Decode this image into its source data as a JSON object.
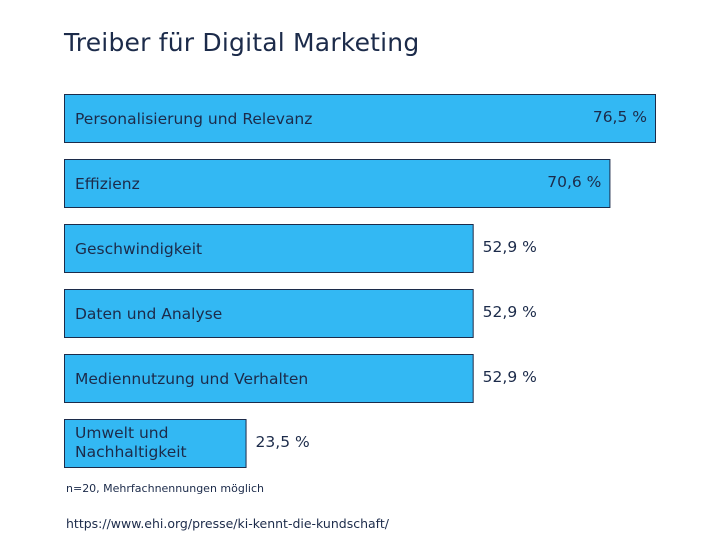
{
  "title": "Treiber für Digital Marketing",
  "note": "n=20, Mehrfachnennungen möglich",
  "source": "https://www.ehi.org/presse/ki-kennt-die-kundschaft/",
  "colors": {
    "bar": "#33b8f3",
    "bar_border": "#1c2b4a",
    "text": "#1c2b4a"
  },
  "chart_data": {
    "type": "bar",
    "orientation": "horizontal",
    "title": "Treiber für Digital Marketing",
    "categories": [
      "Personalisierung und Relevanz",
      "Effizienz",
      "Geschwindigkeit",
      "Daten und Analyse",
      "Mediennutzung und Verhalten",
      "Umwelt und Nachhaltigkeit"
    ],
    "category_lines": [
      [
        "Personalisierung und Relevanz"
      ],
      [
        "Effizienz"
      ],
      [
        "Geschwindigkeit"
      ],
      [
        "Daten und Analyse"
      ],
      [
        "Mediennutzung und Verhalten"
      ],
      [
        "Umwelt und",
        "Nachhaltigkeit"
      ]
    ],
    "values": [
      76.5,
      70.6,
      52.9,
      52.9,
      52.9,
      23.5
    ],
    "value_labels": [
      "76,5 %",
      "70,6 %",
      "52,9 %",
      "52,9 %",
      "52,9 %",
      "23,5 %"
    ],
    "unit": "%",
    "xlim": [
      0,
      76.5
    ],
    "grid": false,
    "legend": "none"
  }
}
